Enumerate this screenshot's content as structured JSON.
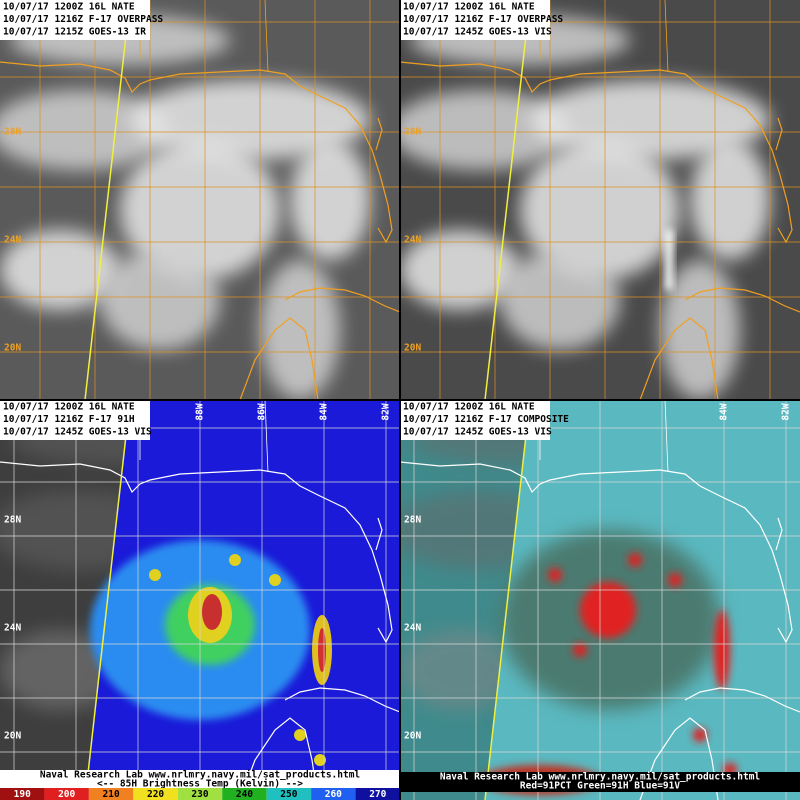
{
  "panels": [
    {
      "header": [
        "10/07/17 1200Z 16L NATE",
        "10/07/17 1216Z F-17 OVERPASS",
        "10/07/17 1215Z GOES-13 IR"
      ],
      "lat_labels": [
        "28N",
        "24N",
        "20N"
      ]
    },
    {
      "header": [
        "10/07/17 1200Z 16L NATE",
        "10/07/17 1216Z F-17 OVERPASS",
        "10/07/17 1245Z GOES-13 VIS"
      ],
      "lat_labels": [
        "28N",
        "24N",
        "20N"
      ]
    },
    {
      "header": [
        "10/07/17 1200Z 16L NATE",
        "10/07/17 1216Z F-17 91H",
        "10/07/17 1245Z GOES-13 VIS"
      ],
      "lat_labels": [
        "28N",
        "24N",
        "20N"
      ],
      "lon_labels": [
        "88W",
        "86W",
        "84W",
        "82W"
      ],
      "footer": [
        "Naval Research Lab  www.nrlmry.navy.mil/sat_products.html",
        "<--  85H Brightness Temp (Kelvin)  -->"
      ],
      "colorbar": [
        190,
        200,
        210,
        220,
        230,
        240,
        250,
        260,
        270
      ]
    },
    {
      "header": [
        "10/07/17 1200Z 16L NATE",
        "10/07/17 1216Z F-17 COMPOSITE",
        "10/07/17 1245Z GOES-13 VIS"
      ],
      "lat_labels": [
        "28N",
        "24N",
        "20N"
      ],
      "lon_labels": [
        "84W",
        "82W"
      ],
      "footer": [
        "Naval Research Lab  www.nrlmry.navy.mil/sat_products.html",
        "Red=91PCT  Green=91H  Blue=91V"
      ]
    }
  ]
}
